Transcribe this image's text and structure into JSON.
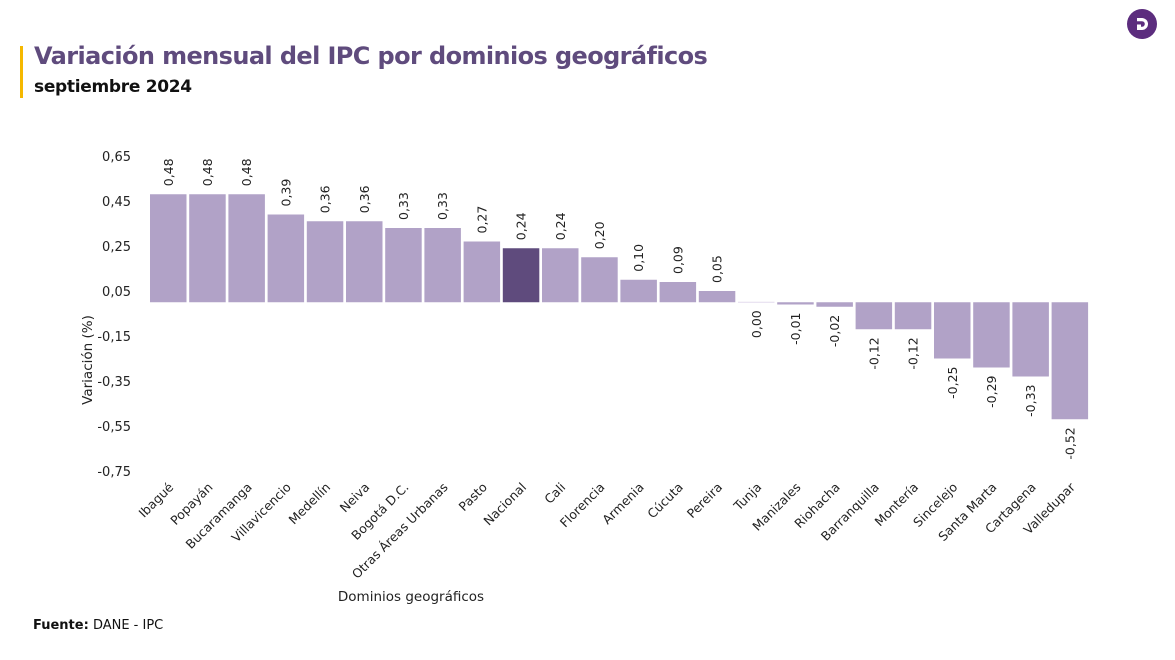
{
  "header": {
    "title": "Variación mensual del IPC por dominios geográficos",
    "subtitle": "septiembre 2024",
    "logo_icon": "dane-d-logo-icon"
  },
  "footer": {
    "source_label": "Fuente:",
    "source_value": "DANE - IPC"
  },
  "colors": {
    "bar": "#b1a2c7",
    "highlight_bar": "#5f4b7d",
    "title": "#5f4b7d",
    "accent": "#f5b800",
    "logo": "#5c2d7e"
  },
  "chart_data": {
    "type": "bar",
    "title": "Variación mensual del IPC por dominios geográficos",
    "subtitle": "septiembre 2024",
    "xlabel": "Dominios geográficos",
    "ylabel": "Variación (%)",
    "ylim": [
      -0.75,
      0.65
    ],
    "yticks": [
      0.65,
      0.45,
      0.25,
      0.05,
      -0.15,
      -0.35,
      -0.55,
      -0.75
    ],
    "ytick_labels": [
      "0,65",
      "0,45",
      "0,25",
      "0,05",
      "-0,15",
      "-0,35",
      "-0,55",
      "-0,75"
    ],
    "grid": false,
    "legend": "none",
    "highlight_category": "Nacional",
    "categories": [
      "Ibagué",
      "Popayán",
      "Bucaramanga",
      "Villavicencio",
      "Medellín",
      "Neiva",
      "Bogotá D.C.",
      "Otras Áreas Urbanas",
      "Pasto",
      "Nacional",
      "Cali",
      "Florencia",
      "Armenia",
      "Cúcuta",
      "Pereira",
      "Tunja",
      "Manizales",
      "Riohacha",
      "Barranquilla",
      "Montería",
      "Sincelejo",
      "Santa Marta",
      "Cartagena",
      "Valledupar"
    ],
    "values": [
      0.48,
      0.48,
      0.48,
      0.39,
      0.36,
      0.36,
      0.33,
      0.33,
      0.27,
      0.24,
      0.24,
      0.2,
      0.1,
      0.09,
      0.05,
      0.0,
      -0.01,
      -0.02,
      -0.12,
      -0.12,
      -0.25,
      -0.29,
      -0.33,
      -0.52
    ],
    "value_labels": [
      "0,48",
      "0,48",
      "0,48",
      "0,39",
      "0,36",
      "0,36",
      "0,33",
      "0,33",
      "0,27",
      "0,24",
      "0,24",
      "0,20",
      "0,10",
      "0,09",
      "0,05",
      "0,00",
      "-0,01",
      "-0,02",
      "-0,12",
      "-0,12",
      "-0,25",
      "-0,29",
      "-0,33",
      "-0,52"
    ]
  }
}
